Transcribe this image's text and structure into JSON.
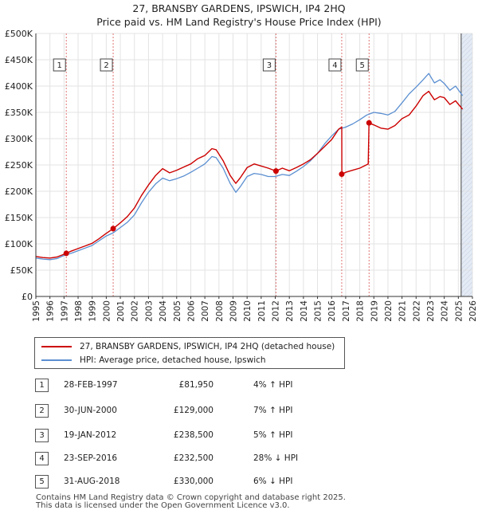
{
  "header": {
    "title_line1": "27, BRANSBY GARDENS, IPSWICH, IP4 2HQ",
    "title_line2": "Price paid vs. HM Land Registry's House Price Index (HPI)"
  },
  "legend": {
    "property_label": "27, BRANSBY GARDENS, IPSWICH, IP4 2HQ (detached house)",
    "hpi_label": "HPI: Average price, detached house, Ipswich"
  },
  "sales": [
    {
      "num": "1",
      "date": "28-FEB-1997",
      "price": "£81,950",
      "hpi": "4% ↑ HPI"
    },
    {
      "num": "2",
      "date": "30-JUN-2000",
      "price": "£129,000",
      "hpi": "7% ↑ HPI"
    },
    {
      "num": "3",
      "date": "19-JAN-2012",
      "price": "£238,500",
      "hpi": "5% ↑ HPI"
    },
    {
      "num": "4",
      "date": "23-SEP-2016",
      "price": "£232,500",
      "hpi": "28% ↓ HPI"
    },
    {
      "num": "5",
      "date": "31-AUG-2018",
      "price": "£330,000",
      "hpi": "6% ↓ HPI"
    }
  ],
  "footer": {
    "line1": "Contains HM Land Registry data © Crown copyright and database right 2025.",
    "line2": "This data is licensed under the Open Government Licence v3.0."
  },
  "colors": {
    "property": "#cc0000",
    "hpi": "#5b8fd1",
    "future_shade": "#dde6f2",
    "marker_line": "#dd6666"
  },
  "chart_data": {
    "type": "line",
    "title": "27, BRANSBY GARDENS, IPSWICH, IP4 2HQ",
    "subtitle": "Price paid vs. HM Land Registry's House Price Index (HPI)",
    "xlabel": "",
    "ylabel": "",
    "xlim": [
      1995,
      2026
    ],
    "ylim": [
      0,
      500000
    ],
    "grid": true,
    "forecast_start": 2025.2,
    "y_ticks": [
      0,
      50000,
      100000,
      150000,
      200000,
      250000,
      300000,
      350000,
      400000,
      450000,
      500000
    ],
    "y_tick_labels": [
      "£0",
      "£50K",
      "£100K",
      "£150K",
      "£200K",
      "£250K",
      "£300K",
      "£350K",
      "£400K",
      "£450K",
      "£500K"
    ],
    "x_ticks": [
      1995,
      1996,
      1997,
      1998,
      1999,
      2000,
      2001,
      2002,
      2003,
      2004,
      2005,
      2006,
      2007,
      2008,
      2009,
      2010,
      2011,
      2012,
      2013,
      2014,
      2015,
      2016,
      2017,
      2018,
      2019,
      2020,
      2021,
      2022,
      2023,
      2024,
      2025,
      2026
    ],
    "x_tick_labels": [
      "1995",
      "1996",
      "1997",
      "1998",
      "1999",
      "2000",
      "2001",
      "2002",
      "2003",
      "2004",
      "2005",
      "2006",
      "2007",
      "2008",
      "2009",
      "2010",
      "2011",
      "2012",
      "2013",
      "2014",
      "2015",
      "2016",
      "2017",
      "2018",
      "2019",
      "2020",
      "2021",
      "2022",
      "2023",
      "2024",
      "2025",
      "2026"
    ],
    "series": [
      {
        "name": "27, BRANSBY GARDENS, IPSWICH, IP4 2HQ (detached house)",
        "x": [
          1995.0,
          1995.5,
          1996.0,
          1996.5,
          1997.16,
          1997.5,
          1998.0,
          1998.5,
          1999.0,
          1999.5,
          2000.0,
          2000.49,
          2001.0,
          2001.5,
          2002.0,
          2002.5,
          2003.0,
          2003.5,
          2004.0,
          2004.5,
          2005.0,
          2005.5,
          2006.0,
          2006.5,
          2007.0,
          2007.5,
          2007.8,
          2008.3,
          2008.8,
          2009.2,
          2009.5,
          2010.0,
          2010.5,
          2011.0,
          2011.5,
          2012.05,
          2012.5,
          2013.0,
          2013.5,
          2014.0,
          2014.5,
          2015.0,
          2015.5,
          2016.0,
          2016.5,
          2016.72,
          2016.73,
          2017.0,
          2017.5,
          2018.0,
          2018.6,
          2018.66,
          2019.0,
          2019.5,
          2020.0,
          2020.5,
          2021.0,
          2021.5,
          2022.0,
          2022.5,
          2022.9,
          2023.3,
          2023.7,
          2024.0,
          2024.4,
          2024.8,
          2025.3
        ],
        "y": [
          76000,
          74000,
          73000,
          75000,
          81950,
          86000,
          91000,
          96000,
          101000,
          110000,
          120000,
          129000,
          140000,
          152000,
          168000,
          192000,
          212000,
          230000,
          243000,
          235000,
          240000,
          246000,
          252000,
          262000,
          268000,
          281000,
          279000,
          258000,
          230000,
          215000,
          225000,
          245000,
          252000,
          248000,
          244000,
          238500,
          244000,
          239000,
          245000,
          252000,
          260000,
          272000,
          285000,
          298000,
          318000,
          322000,
          232500,
          236000,
          240000,
          244000,
          252000,
          330000,
          326000,
          320000,
          318000,
          325000,
          338000,
          345000,
          362000,
          382000,
          390000,
          374000,
          380000,
          378000,
          365000,
          372000,
          356000
        ]
      },
      {
        "name": "HPI: Average price, detached house, Ipswich",
        "x": [
          1995.0,
          1995.5,
          1996.0,
          1996.5,
          1997.0,
          1997.5,
          1998.0,
          1998.5,
          1999.0,
          1999.5,
          2000.0,
          2000.5,
          2001.0,
          2001.5,
          2002.0,
          2002.5,
          2003.0,
          2003.5,
          2004.0,
          2004.5,
          2005.0,
          2005.5,
          2006.0,
          2006.5,
          2007.0,
          2007.5,
          2007.8,
          2008.3,
          2008.8,
          2009.2,
          2009.5,
          2010.0,
          2010.5,
          2011.0,
          2011.5,
          2012.0,
          2012.5,
          2013.0,
          2013.5,
          2014.0,
          2014.5,
          2015.0,
          2015.5,
          2016.0,
          2016.5,
          2017.0,
          2017.5,
          2018.0,
          2018.5,
          2019.0,
          2019.5,
          2020.0,
          2020.5,
          2021.0,
          2021.5,
          2022.0,
          2022.5,
          2022.9,
          2023.3,
          2023.7,
          2024.0,
          2024.4,
          2024.8,
          2025.3
        ],
        "y": [
          73000,
          71000,
          70000,
          72000,
          78000,
          82000,
          87000,
          92000,
          97000,
          106000,
          115000,
          121000,
          131000,
          141000,
          155000,
          178000,
          198000,
          214000,
          225000,
          220000,
          224000,
          229000,
          236000,
          244000,
          252000,
          266000,
          264000,
          244000,
          215000,
          198000,
          208000,
          228000,
          234000,
          232000,
          228000,
          228000,
          232000,
          230000,
          238000,
          247000,
          258000,
          272000,
          290000,
          305000,
          318000,
          322000,
          328000,
          336000,
          345000,
          350000,
          348000,
          345000,
          352000,
          368000,
          385000,
          398000,
          412000,
          424000,
          406000,
          412000,
          405000,
          392000,
          400000,
          382000
        ]
      }
    ],
    "sale_markers": [
      {
        "label": "1",
        "x": 1997.16,
        "y": 81950
      },
      {
        "label": "2",
        "x": 2000.49,
        "y": 129000
      },
      {
        "label": "3",
        "x": 2012.05,
        "y": 238500
      },
      {
        "label": "4",
        "x": 2016.72,
        "y": 232500
      },
      {
        "label": "5",
        "x": 2018.66,
        "y": 330000
      }
    ]
  }
}
